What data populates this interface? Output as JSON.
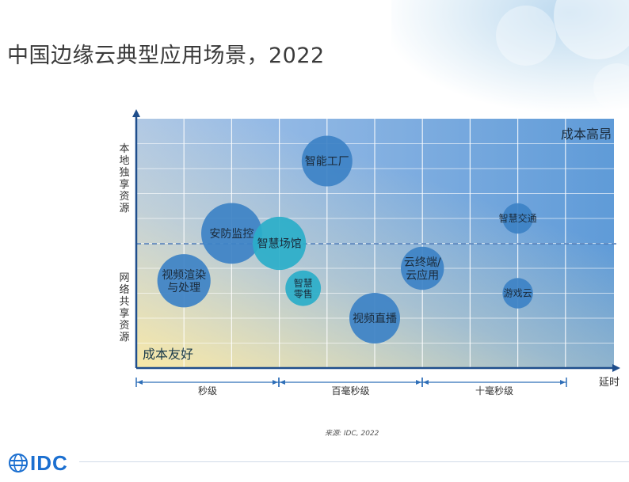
{
  "title": "中国边缘云典型应用场景，2022",
  "source": "来源: IDC, 2022",
  "logo": "IDC",
  "chart_data": {
    "type": "bubble",
    "y_label_top": "本地独享资源",
    "y_label_bottom": "网络共享资源",
    "x_label": "延时",
    "corner_top_right": "成本高昂",
    "corner_bottom_left": "成本友好",
    "x_ranges": [
      "秒级",
      "百毫秒级",
      "十毫秒级"
    ],
    "bubbles": [
      {
        "label": "智能工厂",
        "x": 4.0,
        "y": 8.3,
        "size": 1.0,
        "color": "#3d82c6"
      },
      {
        "label": "安防监控",
        "x": 2.0,
        "y": 5.4,
        "size": 1.2,
        "color": "#3d82c6"
      },
      {
        "label": "智慧场馆",
        "x": 3.0,
        "y": 5.0,
        "size": 1.05,
        "color": "#2aaec9"
      },
      {
        "label": "视频渲染\n与处理",
        "x": 1.0,
        "y": 3.5,
        "size": 1.05,
        "color": "#3d82c6"
      },
      {
        "label": "智慧\n零售",
        "x": 3.5,
        "y": 3.2,
        "size": 0.7,
        "color": "#2aaec9"
      },
      {
        "label": "视频直播",
        "x": 5.0,
        "y": 2.0,
        "size": 1.0,
        "color": "#3d82c6"
      },
      {
        "label": "云终端/\n云应用",
        "x": 6.0,
        "y": 4.0,
        "size": 0.85,
        "color": "#3d82c6"
      },
      {
        "label": "智慧交通",
        "x": 8.0,
        "y": 6.0,
        "size": 0.6,
        "color": "#3d82c6"
      },
      {
        "label": "游戏云",
        "x": 8.0,
        "y": 3.0,
        "size": 0.6,
        "color": "#3d82c6"
      }
    ]
  },
  "colors": {
    "axis": "#1f4e8c",
    "grid": "#ffffff",
    "divider": "#4a78b5",
    "text": "#333333"
  }
}
